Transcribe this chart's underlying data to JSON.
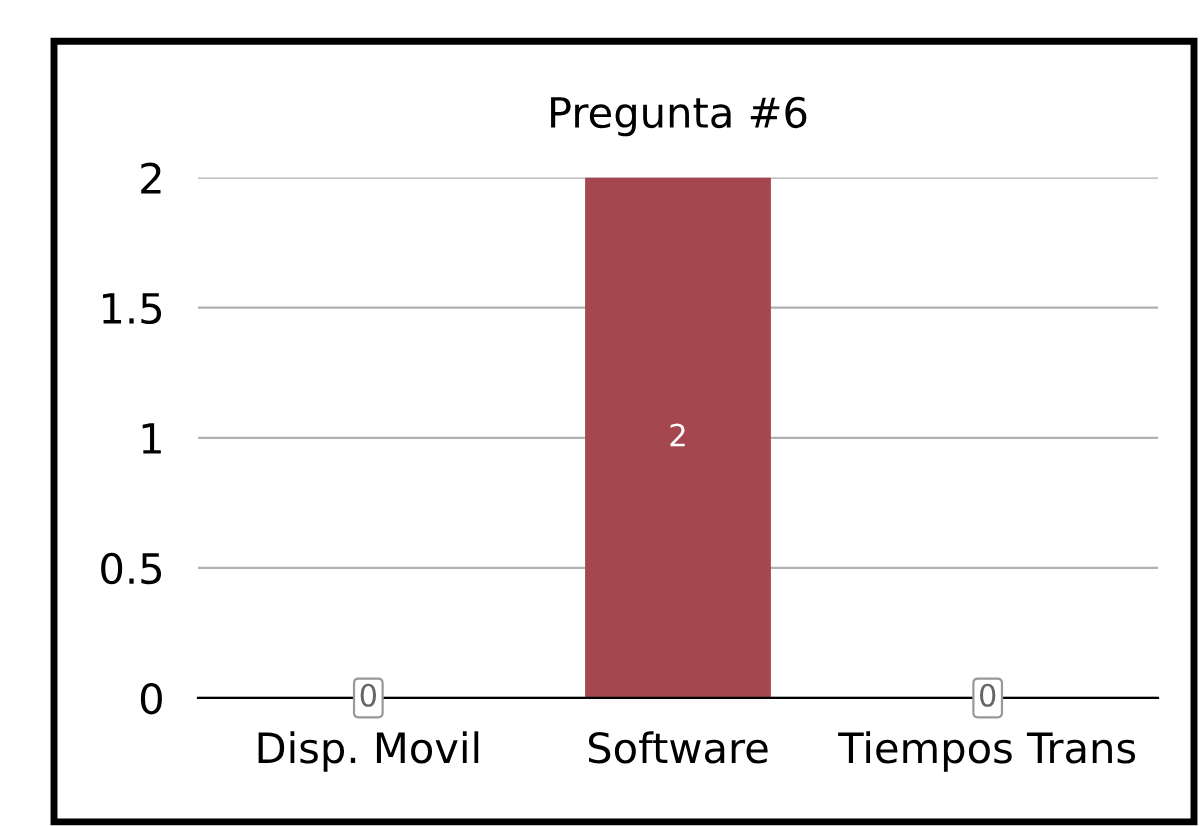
{
  "chart_data": {
    "type": "bar",
    "title": "Pregunta #6",
    "categories": [
      "Disp. Movil",
      "Software",
      "Tiempos Trans"
    ],
    "values": [
      0,
      2,
      0
    ],
    "color": "#a5474f",
    "ylim": [
      0,
      2
    ],
    "yticks": [
      0,
      0.5,
      1,
      1.5,
      2
    ],
    "grid": "y",
    "data_labels": true
  }
}
